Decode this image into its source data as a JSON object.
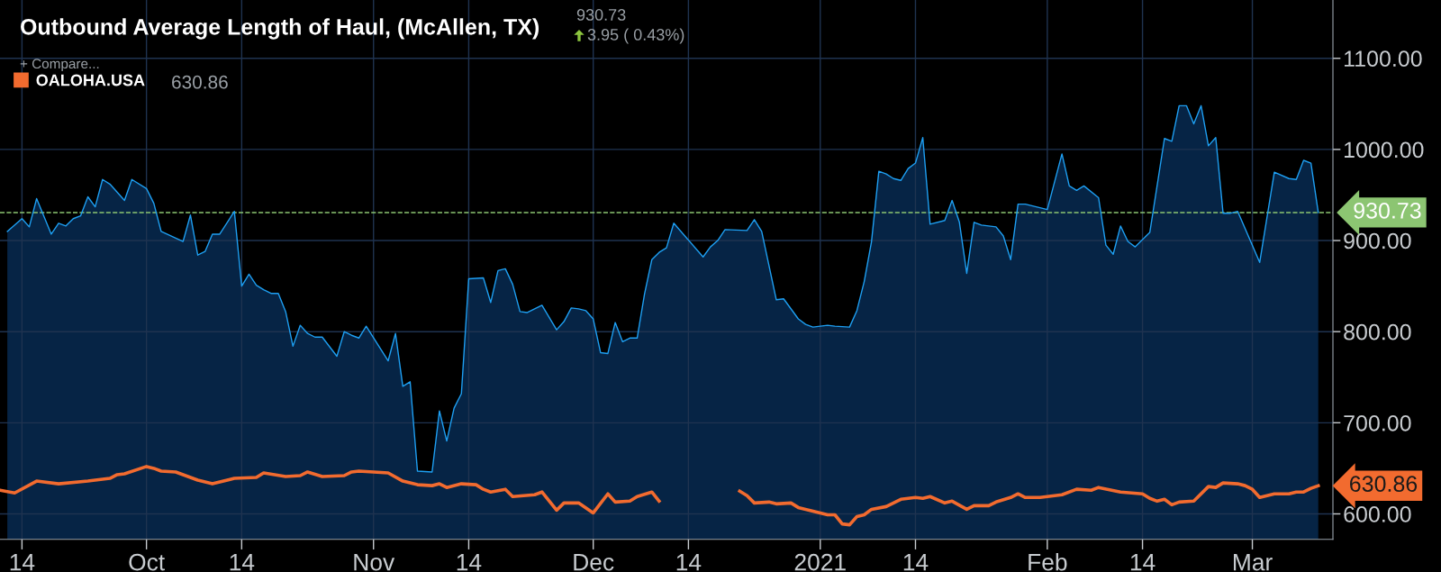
{
  "chart_data": {
    "type": "area",
    "title": "Outbound Average Length of Haul, (McAllen, TX)",
    "annotations": [
      "930.73",
      "3.95 ( 0.43%)",
      "+ Compare...",
      "630.86",
      {
        "text": "630.86",
        "x": "2021-03-10",
        "y": 630.86
      }
    ],
    "series": [
      {
        "color": "#1e9ff2",
        "x": [
          "2020-09-12",
          "2020-09-14",
          "2020-09-15",
          "2020-09-16",
          "2020-09-18",
          "2020-09-19",
          "2020-09-20",
          "2020-09-21",
          "2020-09-22",
          "2020-09-23",
          "2020-09-24",
          "2020-09-25",
          "2020-09-26",
          "2020-09-28",
          "2020-09-29",
          "2020-10-01",
          "2020-10-02",
          "2020-10-03",
          "2020-10-06",
          "2020-10-07",
          "2020-10-08",
          "2020-10-09",
          "2020-10-10",
          "2020-10-11",
          "2020-10-13",
          "2020-10-14",
          "2020-10-15",
          "2020-10-16",
          "2020-10-17",
          "2020-10-18",
          "2020-10-19",
          "2020-10-20",
          "2020-10-21",
          "2020-10-22",
          "2020-10-23",
          "2020-10-24",
          "2020-10-25",
          "2020-10-27",
          "2020-10-28",
          "2020-10-29",
          "2020-10-30",
          "2020-10-31",
          "2020-11-03",
          "2020-11-04",
          "2020-11-05",
          "2020-11-06",
          "2020-11-07",
          "2020-11-09",
          "2020-11-10",
          "2020-11-11",
          "2020-11-12",
          "2020-11-13",
          "2020-11-14",
          "2020-11-16",
          "2020-11-17",
          "2020-11-18",
          "2020-11-19",
          "2020-11-20",
          "2020-11-21",
          "2020-11-22",
          "2020-11-24",
          "2020-11-26",
          "2020-11-27",
          "2020-11-28",
          "2020-11-29",
          "2020-11-30",
          "2020-12-01",
          "2020-12-02",
          "2020-12-03",
          "2020-12-04",
          "2020-12-05",
          "2020-12-06",
          "2020-12-07",
          "2020-12-08",
          "2020-12-09",
          "2020-12-10",
          "2020-12-11",
          "2020-12-12",
          "2020-12-16",
          "2020-12-17",
          "2020-12-18",
          "2020-12-19",
          "2020-12-22",
          "2020-12-23",
          "2020-12-24",
          "2020-12-26",
          "2020-12-27",
          "2020-12-29",
          "2020-12-30",
          "2020-12-31",
          "2021-01-02",
          "2021-01-03",
          "2021-01-05",
          "2021-01-06",
          "2021-01-07",
          "2021-01-08",
          "2021-01-09",
          "2021-01-10",
          "2021-01-11",
          "2021-01-12",
          "2021-01-13",
          "2021-01-14",
          "2021-01-15",
          "2021-01-16",
          "2021-01-18",
          "2021-01-19",
          "2021-01-20",
          "2021-01-21",
          "2021-01-22",
          "2021-01-23",
          "2021-01-25",
          "2021-01-26",
          "2021-01-27",
          "2021-01-28",
          "2021-01-29",
          "2021-02-01",
          "2021-02-03",
          "2021-02-04",
          "2021-02-05",
          "2021-02-06",
          "2021-02-08",
          "2021-02-09",
          "2021-02-10",
          "2021-02-11",
          "2021-02-12",
          "2021-02-13",
          "2021-02-15",
          "2021-02-17",
          "2021-02-18",
          "2021-02-19",
          "2021-02-20",
          "2021-02-21",
          "2021-02-22",
          "2021-02-23",
          "2021-02-24",
          "2021-02-25",
          "2021-02-26",
          "2021-02-27",
          "2021-03-02",
          "2021-03-04",
          "2021-03-06",
          "2021-03-07",
          "2021-03-08",
          "2021-03-09",
          "2021-03-10"
        ],
        "values": [
          910,
          924,
          915,
          946,
          907,
          919,
          916,
          924,
          927,
          948,
          937,
          967,
          962,
          944,
          967,
          957,
          941,
          910,
          899,
          928,
          884,
          888,
          907,
          907,
          932,
          850,
          863,
          851,
          846,
          842,
          842,
          822,
          784,
          807,
          798,
          794,
          794,
          773,
          800,
          796,
          793,
          806,
          768,
          798,
          740,
          745,
          647,
          646,
          713,
          680,
          716,
          732,
          858,
          859,
          832,
          867,
          869,
          852,
          822,
          821,
          829,
          802,
          811,
          826,
          825,
          823,
          814,
          777,
          776,
          810,
          789,
          793,
          793,
          841,
          879,
          887,
          892,
          919,
          882,
          893,
          900,
          912,
          911,
          923,
          910,
          835,
          836,
          814,
          808,
          805,
          807,
          806,
          805,
          823,
          855,
          899,
          976,
          973,
          968,
          966,
          979,
          985,
          1013,
          918,
          922,
          944,
          920,
          864,
          920,
          917,
          915,
          905,
          879,
          940,
          940,
          934,
          995,
          960,
          955,
          960,
          947,
          895,
          885,
          916,
          899,
          893,
          909,
          1012,
          1009,
          1048,
          1048,
          1028,
          1048,
          1004,
          1013,
          930,
          930,
          932,
          876,
          975,
          968,
          967,
          988,
          985,
          930.73
        ]
      },
      {
        "type": "line",
        "name": "OALOHA.USA",
        "color": "#f26b2f",
        "x": [
          "2020-09-11",
          "2020-09-13",
          "2020-09-16",
          "2020-09-19",
          "2020-09-23",
          "2020-09-26",
          "2020-09-27",
          "2020-09-28",
          "2020-10-01",
          "2020-10-02",
          "2020-10-03",
          "2020-10-05",
          "2020-10-06",
          "2020-10-08",
          "2020-10-10",
          "2020-10-13",
          "2020-10-16",
          "2020-10-17",
          "2020-10-20",
          "2020-10-22",
          "2020-10-23",
          "2020-10-25",
          "2020-10-28",
          "2020-10-29",
          "2020-10-30",
          "2020-11-03",
          "2020-11-05",
          "2020-11-07",
          "2020-11-09",
          "2020-11-10",
          "2020-11-11",
          "2020-11-13",
          "2020-11-15",
          "2020-11-16",
          "2020-11-17",
          "2020-11-19",
          "2020-11-20",
          "2020-11-23",
          "2020-11-24",
          "2020-11-26",
          "2020-11-27",
          "2020-11-29",
          "2020-12-01",
          "2020-12-03",
          "2020-12-04",
          "2020-12-06",
          "2020-12-07",
          "2020-12-09",
          "2020-12-10",
          "2020-12-15",
          "2020-12-21",
          "2020-12-22",
          "2020-12-23",
          "2020-12-25",
          "2020-12-26",
          "2020-12-28",
          "2020-12-29",
          "2020-12-31",
          "2021-01-02",
          "2021-01-03",
          "2021-01-04",
          "2021-01-05",
          "2021-01-06",
          "2021-01-07",
          "2021-01-08",
          "2021-01-10",
          "2021-01-12",
          "2021-01-14",
          "2021-01-15",
          "2021-01-16",
          "2021-01-18",
          "2021-01-19",
          "2021-01-21",
          "2021-01-22",
          "2021-01-24",
          "2021-01-25",
          "2021-01-27",
          "2021-01-28",
          "2021-01-29",
          "2021-01-31",
          "2021-02-03",
          "2021-02-05",
          "2021-02-07",
          "2021-02-08",
          "2021-02-11",
          "2021-02-14",
          "2021-02-15",
          "2021-02-16",
          "2021-02-17",
          "2021-02-18",
          "2021-02-19",
          "2021-02-21",
          "2021-02-23",
          "2021-02-24",
          "2021-02-25",
          "2021-02-27",
          "2021-02-28",
          "2021-03-01",
          "2021-03-02",
          "2021-03-04",
          "2021-03-06",
          "2021-03-07",
          "2021-03-08",
          "2021-03-09",
          "2021-03-10"
        ],
        "values": [
          626,
          623,
          636,
          633,
          636,
          639,
          643,
          644,
          652,
          650,
          647,
          646,
          643,
          637,
          633,
          639,
          640,
          645,
          641,
          642,
          646,
          641,
          642,
          646,
          647,
          645,
          636,
          632,
          631,
          633,
          629,
          633,
          632,
          627,
          624,
          627,
          619,
          621,
          624,
          604,
          612,
          612,
          601,
          622,
          613,
          614,
          619,
          624,
          614,
          null,
          625,
          620,
          612,
          613,
          611,
          612,
          607,
          603,
          599,
          599,
          589,
          588,
          597,
          599,
          605,
          608,
          616,
          618,
          617,
          619,
          612,
          614,
          605,
          609,
          609,
          613,
          618,
          622,
          618,
          618,
          621,
          627,
          626,
          629,
          624,
          622,
          617,
          614,
          616,
          610,
          613,
          614,
          630,
          629,
          634,
          633,
          631,
          627,
          618,
          622,
          622,
          624,
          624,
          628,
          630.86
        ]
      }
    ],
    "xlim": [
      "2020-09-11",
      "2021-03-12"
    ],
    "xticks": [
      {
        "value": "2020-09-14",
        "label": "14"
      },
      {
        "value": "2020-10-01",
        "label": "Oct"
      },
      {
        "value": "2020-10-14",
        "label": "14"
      },
      {
        "value": "2020-11-01",
        "label": "Nov"
      },
      {
        "value": "2020-11-14",
        "label": "14"
      },
      {
        "value": "2020-12-01",
        "label": "Dec"
      },
      {
        "value": "2020-12-14",
        "label": "14"
      },
      {
        "value": "2021-01-01",
        "label": "2021"
      },
      {
        "value": "2021-01-14",
        "label": "14"
      },
      {
        "value": "2021-02-01",
        "label": "Feb"
      },
      {
        "value": "2021-02-14",
        "label": "14"
      },
      {
        "value": "2021-03-01",
        "label": "Mar"
      }
    ],
    "ylim": [
      572,
      1164
    ],
    "yticks": [
      {
        "value": 600,
        "label": "600.00"
      },
      {
        "value": 700,
        "label": "700.00"
      },
      {
        "value": 800,
        "label": "800.00"
      },
      {
        "value": 900,
        "label": "900.00"
      },
      {
        "value": 1000,
        "label": "1000.00"
      },
      {
        "value": 1100,
        "label": "1100.00"
      }
    ],
    "ref_lines": [
      {
        "axis": "y",
        "value": 930.73,
        "label": "930.73",
        "color": "#8cc572",
        "line_style": "dashed"
      }
    ],
    "grid": true,
    "legend": "top left",
    "marker": "none",
    "line_style": "solid"
  }
}
